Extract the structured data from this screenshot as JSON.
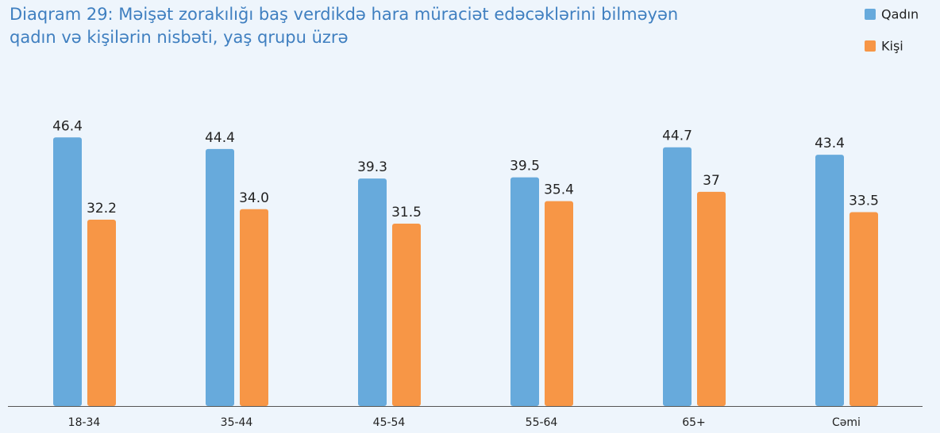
{
  "chart_data": {
    "type": "bar",
    "title": "Diaqram 29: Məişət zorakılığı baş verdikdə hara müraciət edəcəklərini bilməyən qadın və kişilərin nisbəti, yaş qrupu üzrə",
    "categories": [
      "18-34",
      "35-44",
      "45-54",
      "55-64",
      "65+",
      "Cəmi"
    ],
    "series": [
      {
        "name": "Qadın",
        "color": "#67aadc",
        "values": [
          46.4,
          44.4,
          39.3,
          39.5,
          44.7,
          43.4
        ],
        "value_labels": [
          "46.4",
          "44.4",
          "39.3",
          "39.5",
          "44.7",
          "43.4"
        ]
      },
      {
        "name": "Kişi",
        "color": "#f79646",
        "values": [
          32.2,
          34.0,
          31.5,
          35.4,
          37,
          33.5
        ],
        "value_labels": [
          "32.2",
          "34.0",
          "31.5",
          "35.4",
          "37",
          "33.5"
        ]
      }
    ],
    "ylim": [
      0,
      50
    ],
    "legend": "top-right"
  }
}
